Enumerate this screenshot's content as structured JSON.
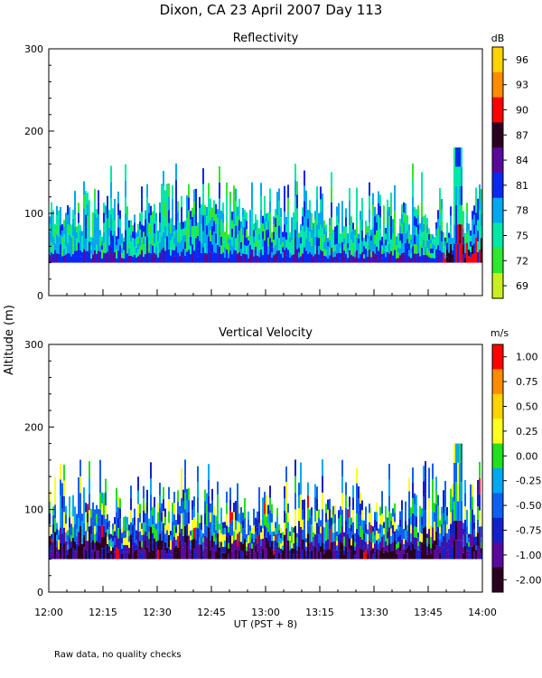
{
  "figure": {
    "title": "Dixon, CA 23 April 2007  Day 113",
    "ylabel": "Altitude (m)",
    "xlabel": "UT  (PST + 8)",
    "footnote": "Raw data, no quality checks"
  },
  "chart_data": [
    {
      "type": "heatmap",
      "title": "Reflectivity",
      "xlabel": "UT  (PST + 8)",
      "ylabel": "Altitude (m)",
      "x_ticks": [
        "12:00",
        "12:15",
        "12:30",
        "12:45",
        "13:00",
        "13:15",
        "13:30",
        "13:45",
        "14:00"
      ],
      "xlim_minutes": [
        0,
        120
      ],
      "ylim": [
        0,
        300
      ],
      "y_ticks": [
        0,
        100,
        200,
        300
      ],
      "colorbar": {
        "units": "dB",
        "labels": [
          "96",
          "93",
          "90",
          "87",
          "84",
          "81",
          "78",
          "75",
          "72",
          "69"
        ],
        "colors": [
          "#ffd400",
          "#ff8c00",
          "#ff0000",
          "#2a0020",
          "#5a0a9a",
          "#0a28f0",
          "#00a8f0",
          "#00e8a8",
          "#30e830",
          "#c8f020"
        ]
      },
      "data_extent": {
        "altitude_bottom": 40,
        "typical_top": [
          100,
          140
        ],
        "max_top": 180,
        "max_top_time": "13:53"
      }
    },
    {
      "type": "heatmap",
      "title": "Vertical Velocity",
      "xlabel": "UT  (PST + 8)",
      "ylabel": "Altitude (m)",
      "x_ticks": [
        "12:00",
        "12:15",
        "12:30",
        "12:45",
        "13:00",
        "13:15",
        "13:30",
        "13:45",
        "14:00"
      ],
      "xlim_minutes": [
        0,
        120
      ],
      "ylim": [
        0,
        300
      ],
      "y_ticks": [
        0,
        100,
        200,
        300
      ],
      "colorbar": {
        "units": "m/s",
        "labels": [
          "1.00",
          "0.75",
          "0.50",
          "0.25",
          "0.00",
          "-0.25",
          "-0.50",
          "-0.75",
          "-1.00",
          "-2.00"
        ],
        "colors": [
          "#ff0000",
          "#ff8c00",
          "#ffd400",
          "#ffff20",
          "#20e020",
          "#00a8f0",
          "#1060f0",
          "#1420c8",
          "#5a0a9a",
          "#2a0020"
        ]
      },
      "data_extent": {
        "altitude_bottom": 40,
        "typical_top": [
          100,
          140
        ],
        "max_top": 180,
        "max_top_time": "13:53"
      }
    }
  ]
}
